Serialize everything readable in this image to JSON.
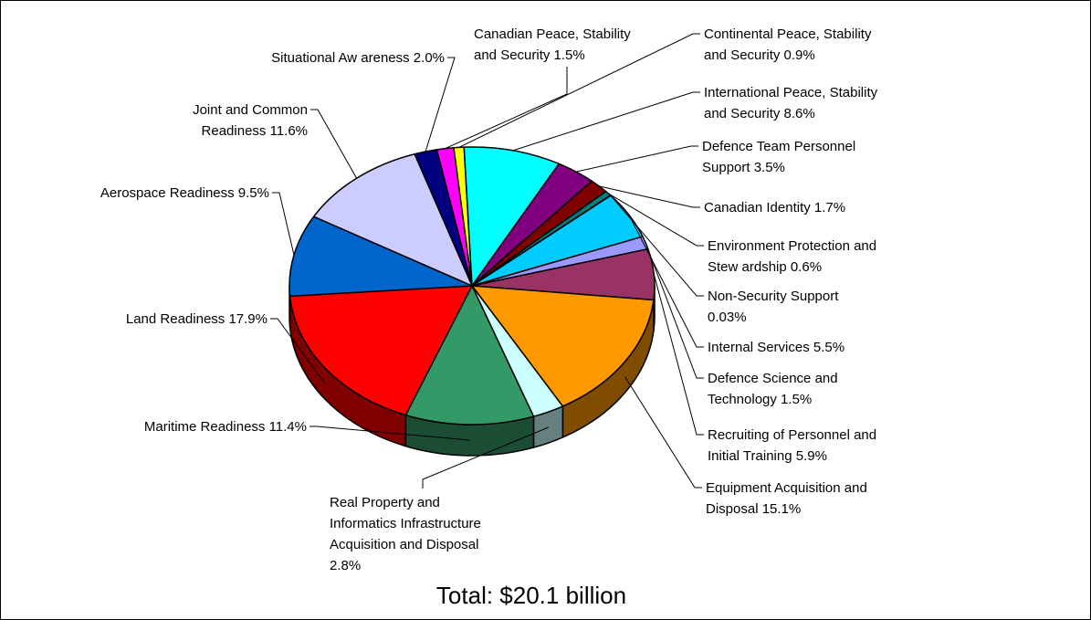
{
  "chart_data": {
    "type": "pie",
    "subtitle": "Total: $20.1 billion",
    "slices": [
      {
        "name": "Situational Awareness",
        "label_lines": [
          "Situational Aw areness 2.0%"
        ],
        "value": 2.0,
        "color": "#000080"
      },
      {
        "name": "Canadian Peace, Stability and Security",
        "label_lines": [
          "Canadian Peace, Stability",
          "and Security  1.5%"
        ],
        "value": 1.5,
        "color": "#ff00ff"
      },
      {
        "name": "Continental Peace, Stability and Security",
        "label_lines": [
          "Continental Peace, Stability",
          "and Security  0.9%"
        ],
        "value": 0.9,
        "color": "#ffff00"
      },
      {
        "name": "International Peace, Stability and Security",
        "label_lines": [
          "International Peace, Stability",
          "and Security  8.6%"
        ],
        "value": 8.6,
        "color": "#00ffff"
      },
      {
        "name": "Defence Team Personnel Support",
        "label_lines": [
          "Defence Team Personnel",
          "Support  3.5%"
        ],
        "value": 3.5,
        "color": "#800080"
      },
      {
        "name": "Canadian Identity",
        "label_lines": [
          "Canadian Identity  1.7%"
        ],
        "value": 1.7,
        "color": "#800000"
      },
      {
        "name": "Environment Protection and Stewardship",
        "label_lines": [
          "Environment Protection and",
          "Stew ardship 0.6%"
        ],
        "value": 0.6,
        "color": "#008080"
      },
      {
        "name": "Non-Security Support",
        "label_lines": [
          "Non-Security Support",
          "0.03%"
        ],
        "value": 0.03,
        "color": "#0000ff"
      },
      {
        "name": "Internal Services",
        "label_lines": [
          "Internal Services 5.5%"
        ],
        "value": 5.5,
        "color": "#00ccff"
      },
      {
        "name": "Defence Science and Technology",
        "label_lines": [
          "Defence Science and",
          "Technology  1.5%"
        ],
        "value": 1.5,
        "color": "#9999ff"
      },
      {
        "name": "Recruiting of Personnel and Initial Training",
        "label_lines": [
          "Recruiting of Personnel and",
          "Initial Training  5.9%"
        ],
        "value": 5.9,
        "color": "#993366"
      },
      {
        "name": "Equipment Acquisition and Disposal",
        "label_lines": [
          "Equipment Acquisition and",
          "Disposal  15.1%"
        ],
        "value": 15.1,
        "color": "#ff9900"
      },
      {
        "name": "Real Property and Informatics Infrastructure Acquisition and Disposal",
        "label_lines": [
          "Real Property and",
          "Informatics Infrastructure",
          "Acquisition and Disposal",
          "2.8%"
        ],
        "value": 2.8,
        "color": "#ccffff"
      },
      {
        "name": "Maritime Readiness",
        "label_lines": [
          "Maritime Readiness  11.4%"
        ],
        "value": 11.4,
        "color": "#339966"
      },
      {
        "name": "Land Readiness",
        "label_lines": [
          "Land Readiness  17.9%"
        ],
        "value": 17.9,
        "color": "#ff0000"
      },
      {
        "name": "Aerospace Readiness",
        "label_lines": [
          "Aerospace Readiness  9.5%"
        ],
        "value": 9.5,
        "color": "#0066cc"
      },
      {
        "name": "Joint and Common Readiness",
        "label_lines": [
          "Joint and Common",
          "Readiness  11.6%"
        ],
        "value": 11.6,
        "color": "#ccccff"
      }
    ]
  }
}
